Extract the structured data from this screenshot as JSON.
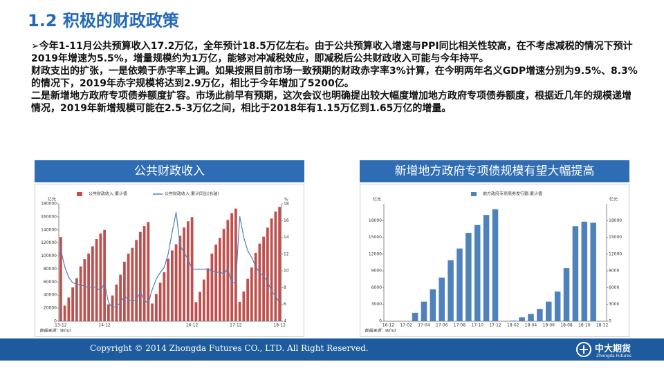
{
  "header": {
    "title": "1.2  积极的财政政策"
  },
  "body": {
    "paragraphs": [
      "➢今年1-11月公共预算收入17.2万亿，全年预计18.5万亿左右。由于公共预算收入增速与PPI同比相关性较高，在不考虑减税的情况下预计2019年增速为5.5%，增量规模约为1万亿，能够对冲减税效应，即减税后公共财政收入可能与今年持平。",
      "财政支出的扩张，一是依赖于赤字率上调。如果按照目前市场一致预期的财政赤字率3%计算，在今明两年名义GDP增速分别为9.5%、8.3%的情况下，2019年赤字规模将达到2.9万亿，相比于今年增加了5200亿。",
      "二是新增地方政府专项债券额度扩容。市场此前早有预期，这次会议也明确提出较大幅度增加地方政府专项债券额度，根据近几年的规模递增情况，2019年新增规模可能在2.5-3万亿之间，相比于2018年有1.15万亿到1.65万亿的增量。"
    ]
  },
  "chart_data": [
    {
      "type": "bar",
      "title": "公共财政收入",
      "ylabel": "亿元",
      "y2label": "%",
      "source": "数据来源：Wind",
      "categories": [
        "13-12",
        null,
        null,
        null,
        null,
        null,
        null,
        null,
        null,
        null,
        null,
        "14-12",
        null,
        null,
        null,
        null,
        null,
        null,
        null,
        null,
        null,
        null,
        null,
        null,
        null,
        null,
        null,
        null,
        null,
        null,
        null,
        null,
        null,
        "16-12",
        null,
        null,
        null,
        null,
        null,
        null,
        null,
        null,
        null,
        null,
        "17-12",
        null,
        null,
        null,
        null,
        null,
        null,
        null,
        null,
        null,
        null,
        "18-12"
      ],
      "series": [
        {
          "name": "公共财政收入:累计值",
          "color": "#c0504d",
          "values": [
            129000,
            23800,
            36400,
            51800,
            65800,
            84000,
            95200,
            103600,
            114800,
            126000,
            134400,
            140000,
            25800,
            39500,
            56200,
            71400,
            91200,
            103400,
            112500,
            124600,
            136800,
            145900,
            152000,
            27100,
            41500,
            59000,
            75000,
            95800,
            108500,
            118100,
            130900,
            143600,
            153200,
            159600,
            29300,
            44900,
            63900,
            81100,
            103600,
            117400,
            127700,
            141500,
            155300,
            165700,
            172600,
            29800,
            45500,
            64800,
            82300,
            105000,
            119000,
            129500,
            143500,
            157500,
            168000,
            175000
          ]
        },
        {
          "name": "公共财政收入:累计同比(右轴)",
          "color": "#4f81bd",
          "type": "line",
          "axis": "y2",
          "values": [
            12.5,
            10.5,
            9.2,
            8.6,
            8.4,
            8.3,
            8.2,
            8.0,
            8.1,
            8.0,
            7.6,
            8.6,
            6.2,
            5.6,
            5.8,
            6.2,
            7.0,
            6.6,
            6.4,
            6.5,
            7.5,
            6.5,
            6.1,
            7.8,
            9.0,
            9.8,
            10.4,
            12.0,
            14.6,
            17.0,
            13.0,
            12.2,
            11.4,
            10.2,
            10.2,
            10.2,
            10.2,
            10.2,
            10.0,
            9.8,
            9.9,
            9.6,
            10.3,
            8.5,
            8.7,
            16.5,
            14.0,
            12.4,
            11.6,
            10.5,
            9.8,
            9.4,
            8.7,
            7.6,
            7.0,
            6.2
          ]
        }
      ],
      "ylim": [
        0,
        180000
      ],
      "yticks": [
        0,
        20000,
        40000,
        60000,
        80000,
        100000,
        120000,
        140000,
        160000,
        180000
      ],
      "y2lim": [
        4,
        18
      ],
      "y2ticks": [
        4,
        6,
        8,
        10,
        12,
        14,
        16,
        18
      ]
    },
    {
      "type": "bar",
      "title": "新增地方政府专项债规模有望大幅提高",
      "ylabel": "亿元",
      "y2label": "亿元",
      "source": "数据来源：Wind",
      "categories": [
        "16-12",
        null,
        "17-02",
        null,
        "17-04",
        null,
        "17-06",
        null,
        "17-08",
        null,
        "17-10",
        null,
        "17-12",
        null,
        "18-02",
        null,
        "18-04",
        null,
        "18-06",
        null,
        "18-08",
        null,
        "18-10",
        null,
        "18-12"
      ],
      "series": [
        {
          "name": "地方政府专项债券发行额:累计值",
          "color": "#4f81bd",
          "values": [
            0,
            0,
            0,
            1500,
            3500,
            5700,
            7800,
            10900,
            13000,
            15800,
            17200,
            19000,
            20000,
            0,
            100,
            700,
            1300,
            2200,
            3500,
            5300,
            9500,
            17000,
            17800,
            17600,
            0
          ]
        }
      ],
      "ylim": [
        0,
        21000
      ],
      "yticks": [
        0,
        3000,
        6000,
        9000,
        12000,
        15000,
        18000
      ],
      "y2lim": [
        0,
        21000
      ],
      "y2ticks": [
        0,
        3000,
        6000,
        9000,
        12000,
        15000,
        18000
      ]
    }
  ],
  "footer": {
    "copyright": "Copyright © 2014 Zhongda Futures CO., LTD. All Right Reserved.",
    "logo_cn": "中大期货",
    "logo_en": "Zhongda Futures"
  }
}
